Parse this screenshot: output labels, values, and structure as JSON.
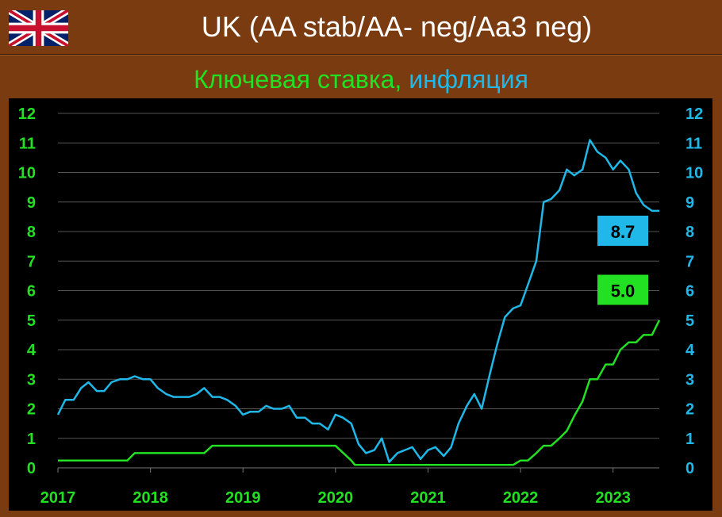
{
  "header": {
    "title": "UK (AA stab/AA- neg/Aa3 neg)",
    "flag_icon": "uk-flag-icon"
  },
  "subtitle": {
    "part1": "Ключевая ставка,",
    "part2": "инфляция",
    "part1_color": "#22e022",
    "part2_color": "#1fb8e8"
  },
  "colors": {
    "background": "#7a3b10",
    "plot_background": "#000000",
    "rate": "#22e022",
    "inflation": "#1fb8e8",
    "grid": "#555555"
  },
  "chart_data": {
    "type": "line",
    "title": "",
    "xlabel": "",
    "ylabel": "",
    "ylim": [
      0,
      12
    ],
    "y_ticks": [
      "0",
      "1",
      "2",
      "3",
      "4",
      "5",
      "6",
      "7",
      "8",
      "9",
      "10",
      "11",
      "12"
    ],
    "x_ticks": [
      "2017",
      "2018",
      "2019",
      "2020",
      "2021",
      "2022",
      "2023"
    ],
    "xlim": [
      2017.0,
      2023.5
    ],
    "grid": true,
    "series": [
      {
        "key": "rate",
        "color": "#22e022",
        "end_label": "5.0",
        "points": [
          [
            2017.0,
            0.25
          ],
          [
            2017.75,
            0.25
          ],
          [
            2017.83,
            0.5
          ],
          [
            2018.58,
            0.5
          ],
          [
            2018.67,
            0.75
          ],
          [
            2020.0,
            0.75
          ],
          [
            2020.17,
            0.25
          ],
          [
            2020.21,
            0.1
          ],
          [
            2021.92,
            0.1
          ],
          [
            2022.0,
            0.25
          ],
          [
            2022.08,
            0.25
          ],
          [
            2022.17,
            0.5
          ],
          [
            2022.25,
            0.75
          ],
          [
            2022.33,
            0.75
          ],
          [
            2022.42,
            1.0
          ],
          [
            2022.5,
            1.25
          ],
          [
            2022.58,
            1.75
          ],
          [
            2022.67,
            2.25
          ],
          [
            2022.75,
            3.0
          ],
          [
            2022.83,
            3.0
          ],
          [
            2022.92,
            3.5
          ],
          [
            2023.0,
            3.5
          ],
          [
            2023.08,
            4.0
          ],
          [
            2023.17,
            4.25
          ],
          [
            2023.25,
            4.25
          ],
          [
            2023.33,
            4.5
          ],
          [
            2023.42,
            4.5
          ],
          [
            2023.5,
            5.0
          ]
        ]
      },
      {
        "key": "inflation",
        "color": "#1fb8e8",
        "end_label": "8.7",
        "points": [
          [
            2017.0,
            1.8
          ],
          [
            2017.08,
            2.3
          ],
          [
            2017.17,
            2.3
          ],
          [
            2017.25,
            2.7
          ],
          [
            2017.33,
            2.9
          ],
          [
            2017.42,
            2.6
          ],
          [
            2017.5,
            2.6
          ],
          [
            2017.58,
            2.9
          ],
          [
            2017.67,
            3.0
          ],
          [
            2017.75,
            3.0
          ],
          [
            2017.83,
            3.1
          ],
          [
            2017.92,
            3.0
          ],
          [
            2018.0,
            3.0
          ],
          [
            2018.08,
            2.7
          ],
          [
            2018.17,
            2.5
          ],
          [
            2018.25,
            2.4
          ],
          [
            2018.33,
            2.4
          ],
          [
            2018.42,
            2.4
          ],
          [
            2018.5,
            2.5
          ],
          [
            2018.58,
            2.7
          ],
          [
            2018.67,
            2.4
          ],
          [
            2018.75,
            2.4
          ],
          [
            2018.83,
            2.3
          ],
          [
            2018.92,
            2.1
          ],
          [
            2019.0,
            1.8
          ],
          [
            2019.08,
            1.9
          ],
          [
            2019.17,
            1.9
          ],
          [
            2019.25,
            2.1
          ],
          [
            2019.33,
            2.0
          ],
          [
            2019.42,
            2.0
          ],
          [
            2019.5,
            2.1
          ],
          [
            2019.58,
            1.7
          ],
          [
            2019.67,
            1.7
          ],
          [
            2019.75,
            1.5
          ],
          [
            2019.83,
            1.5
          ],
          [
            2019.92,
            1.3
          ],
          [
            2020.0,
            1.8
          ],
          [
            2020.08,
            1.7
          ],
          [
            2020.17,
            1.5
          ],
          [
            2020.25,
            0.8
          ],
          [
            2020.33,
            0.5
          ],
          [
            2020.42,
            0.6
          ],
          [
            2020.5,
            1.0
          ],
          [
            2020.58,
            0.2
          ],
          [
            2020.67,
            0.5
          ],
          [
            2020.75,
            0.6
          ],
          [
            2020.83,
            0.7
          ],
          [
            2020.92,
            0.3
          ],
          [
            2021.0,
            0.6
          ],
          [
            2021.08,
            0.7
          ],
          [
            2021.17,
            0.4
          ],
          [
            2021.25,
            0.7
          ],
          [
            2021.33,
            1.5
          ],
          [
            2021.42,
            2.1
          ],
          [
            2021.5,
            2.5
          ],
          [
            2021.58,
            2.0
          ],
          [
            2021.67,
            3.2
          ],
          [
            2021.75,
            4.2
          ],
          [
            2021.83,
            5.1
          ],
          [
            2021.92,
            5.4
          ],
          [
            2022.0,
            5.5
          ],
          [
            2022.08,
            6.2
          ],
          [
            2022.17,
            7.0
          ],
          [
            2022.25,
            9.0
          ],
          [
            2022.33,
            9.1
          ],
          [
            2022.42,
            9.4
          ],
          [
            2022.5,
            10.1
          ],
          [
            2022.58,
            9.9
          ],
          [
            2022.67,
            10.1
          ],
          [
            2022.75,
            11.1
          ],
          [
            2022.83,
            10.7
          ],
          [
            2022.92,
            10.5
          ],
          [
            2023.0,
            10.1
          ],
          [
            2023.08,
            10.4
          ],
          [
            2023.17,
            10.1
          ],
          [
            2023.25,
            9.3
          ],
          [
            2023.33,
            8.9
          ],
          [
            2023.42,
            8.7
          ],
          [
            2023.5,
            8.7
          ]
        ]
      }
    ]
  }
}
